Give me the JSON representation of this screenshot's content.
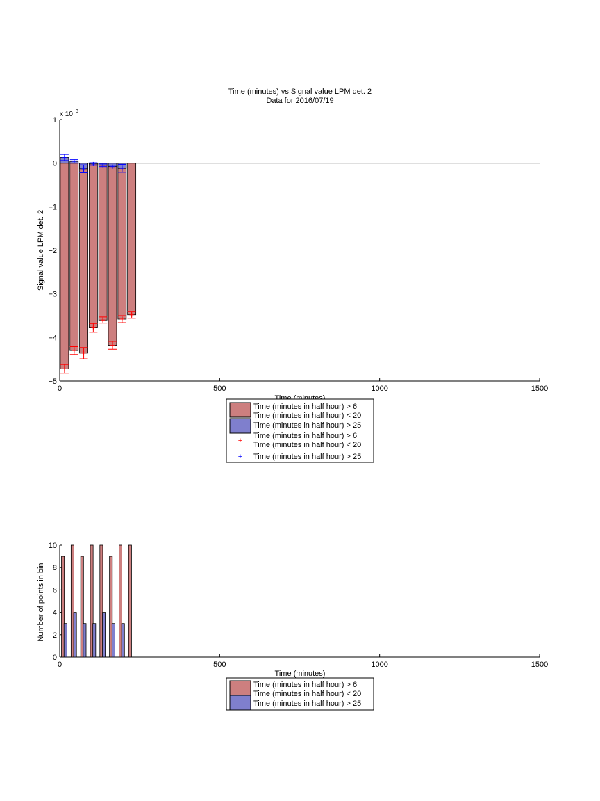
{
  "chart_data": [
    {
      "type": "bar",
      "title": "Time (minutes) vs Signal value LPM det. 2",
      "subtitle": "Data for 2016/07/19",
      "xlabel": "Time (minutes)",
      "ylabel": "Signal value LPM det. 2",
      "exponent_label": "x 10",
      "exponent_power": "−3",
      "xlim": [
        0,
        1500
      ],
      "ylim": [
        -5,
        1
      ],
      "y_scale": 0.001,
      "xticks": [
        0,
        500,
        1000,
        1500
      ],
      "yticks": [
        -5,
        -4,
        -3,
        -2,
        -1,
        0,
        1
      ],
      "xtick_labels": [
        "0",
        "500",
        "1000",
        "1500"
      ],
      "ytick_labels": [
        "−5",
        "−4",
        "−3",
        "−2",
        "−1",
        "0",
        "1"
      ],
      "bar_width": 26,
      "series": [
        {
          "name": "Time (minutes in half hour) > 6 Time (minutes in half hour) < 20",
          "color": "#cd7f7f",
          "error_color": "#ff0000",
          "x": [
            15,
            45,
            75,
            105,
            135,
            165,
            195,
            225
          ],
          "values": [
            -4.72,
            -4.3,
            -4.36,
            -3.78,
            -3.6,
            -4.18,
            -3.58,
            -3.48
          ],
          "error": [
            0.1,
            0.09,
            0.13,
            0.1,
            0.07,
            0.09,
            0.08,
            0.08
          ]
        },
        {
          "name": "Time (minutes in half hour) > 25",
          "color": "#7f7fcd",
          "error_color": "#0000ff",
          "x": [
            15,
            45,
            75,
            105,
            135,
            165,
            195
          ],
          "values": [
            0.13,
            0.04,
            -0.13,
            -0.02,
            -0.05,
            -0.08,
            -0.12
          ],
          "error": [
            0.07,
            0.04,
            0.09,
            0.03,
            0.03,
            0.03,
            0.09
          ]
        }
      ],
      "legend": {
        "placement": "below",
        "entries": [
          {
            "kind": "patch",
            "color": "#cd7f7f",
            "lines": [
              "Time (minutes in half hour) > 6",
              "Time (minutes in half hour) < 20"
            ]
          },
          {
            "kind": "patch",
            "color": "#7f7fcd",
            "lines": [
              "Time (minutes in half hour) > 25"
            ]
          },
          {
            "kind": "marker",
            "color": "#ff0000",
            "lines": [
              "Time (minutes in half hour) > 6",
              "Time (minutes in half hour) < 20"
            ]
          },
          {
            "kind": "marker",
            "color": "#0000ff",
            "lines": [
              "Time (minutes in half hour) > 25"
            ]
          }
        ]
      }
    },
    {
      "type": "bar",
      "xlabel": "Time (minutes)",
      "ylabel": "Number of points in bin",
      "xlim": [
        0,
        1500
      ],
      "ylim": [
        0,
        10
      ],
      "xticks": [
        0,
        500,
        1000,
        1500
      ],
      "yticks": [
        0,
        2,
        4,
        6,
        8,
        10
      ],
      "xtick_labels": [
        "0",
        "500",
        "1000",
        "1500"
      ],
      "ytick_labels": [
        "0",
        "2",
        "4",
        "6",
        "8",
        "10"
      ],
      "bar_width": 9,
      "series": [
        {
          "name": "Time (minutes in half hour) > 6 Time (minutes in half hour) < 20",
          "color": "#cd7f7f",
          "x": [
            10,
            40,
            70,
            100,
            130,
            160,
            190,
            220
          ],
          "values": [
            9,
            10,
            9,
            10,
            10,
            9,
            10,
            10
          ]
        },
        {
          "name": "Time (minutes in half hour) > 25",
          "color": "#7f7fcd",
          "x": [
            18,
            48,
            78,
            108,
            138,
            168,
            198
          ],
          "values": [
            3,
            4,
            3,
            3,
            4,
            3,
            3
          ]
        }
      ],
      "legend": {
        "placement": "below",
        "entries": [
          {
            "kind": "patch",
            "color": "#cd7f7f",
            "lines": [
              "Time (minutes in half hour) > 6",
              "Time (minutes in half hour) < 20"
            ]
          },
          {
            "kind": "patch",
            "color": "#7f7fcd",
            "lines": [
              "Time (minutes in half hour) > 25"
            ]
          }
        ]
      }
    }
  ]
}
